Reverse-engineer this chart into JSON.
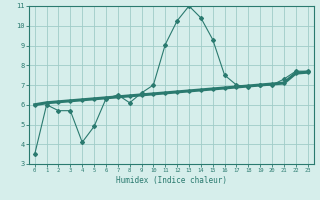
{
  "x": [
    0,
    1,
    2,
    3,
    4,
    5,
    6,
    7,
    8,
    9,
    10,
    11,
    12,
    13,
    14,
    15,
    16,
    17,
    18,
    19,
    20,
    21,
    22,
    23
  ],
  "y_curve": [
    3.5,
    6.0,
    5.7,
    5.7,
    4.1,
    4.9,
    6.3,
    6.5,
    6.1,
    6.6,
    7.0,
    9.05,
    10.25,
    11.0,
    10.4,
    9.3,
    7.5,
    7.0,
    6.9,
    7.0,
    7.0,
    7.3,
    7.7,
    7.7
  ],
  "y_trend": [
    6.0,
    6.1,
    6.15,
    6.2,
    6.25,
    6.3,
    6.35,
    6.4,
    6.45,
    6.5,
    6.55,
    6.6,
    6.65,
    6.7,
    6.75,
    6.8,
    6.85,
    6.9,
    6.95,
    7.0,
    7.05,
    7.1,
    7.6,
    7.65
  ],
  "line_color": "#2a7a6f",
  "background_color": "#d6eeeb",
  "grid_color": "#a0ccc8",
  "xlabel": "Humidex (Indice chaleur)",
  "xlim_min": -0.5,
  "xlim_max": 23.5,
  "ylim_min": 3,
  "ylim_max": 11,
  "yticks": [
    3,
    4,
    5,
    6,
    7,
    8,
    9,
    10,
    11
  ],
  "xticks": [
    0,
    1,
    2,
    3,
    4,
    5,
    6,
    7,
    8,
    9,
    10,
    11,
    12,
    13,
    14,
    15,
    16,
    17,
    18,
    19,
    20,
    21,
    22,
    23
  ]
}
